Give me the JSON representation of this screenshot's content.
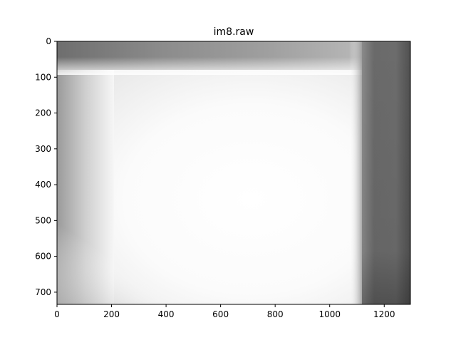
{
  "chart_data": {
    "type": "heatmap",
    "title": "im8.raw",
    "xlabel": "",
    "ylabel": "",
    "colormap": "gray",
    "xlim": [
      0,
      1296
    ],
    "ylim": [
      0,
      734
    ],
    "y_inverted": true,
    "grid": false,
    "xticks": [
      0,
      200,
      400,
      600,
      800,
      1000,
      1200
    ],
    "yticks": [
      0,
      100,
      200,
      300,
      400,
      500,
      600,
      700
    ],
    "image_regions": [
      {
        "name": "top-dark-band",
        "x0": 0,
        "x1": 1115,
        "y0": 0,
        "y1": 75,
        "intensity": 0.55
      },
      {
        "name": "left-falloff",
        "x0": 0,
        "x1": 180,
        "y0": 75,
        "y1": 734,
        "intensity": 0.75
      },
      {
        "name": "bright-panel",
        "x0": 180,
        "x1": 1100,
        "y0": 75,
        "y1": 734,
        "intensity": 1.0
      },
      {
        "name": "right-dark-band",
        "x0": 1115,
        "x1": 1296,
        "y0": 0,
        "y1": 734,
        "intensity": 0.38
      }
    ],
    "colors": {
      "axis": "#000000",
      "background": "#ffffff"
    }
  }
}
